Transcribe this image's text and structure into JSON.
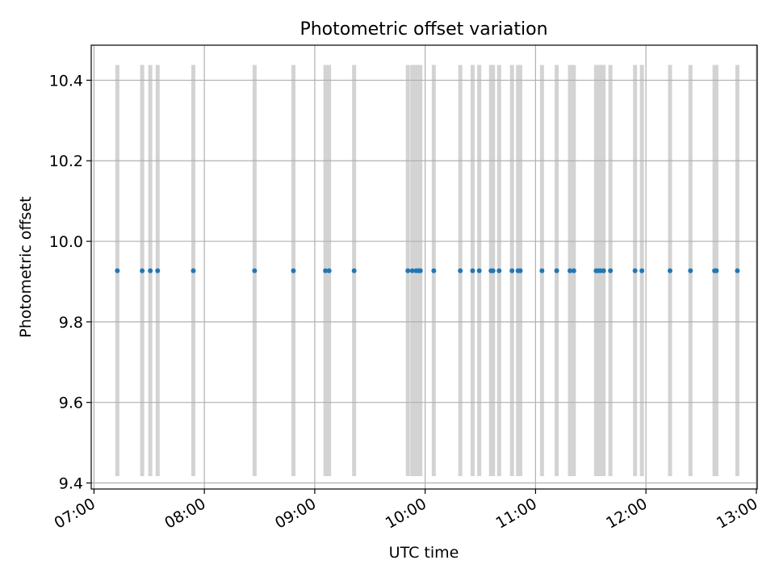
{
  "chart_data": {
    "type": "scatter",
    "title": "Photometric offset variation",
    "xlabel": "UTC time",
    "ylabel": "Photometric offset",
    "x_unit": "minutes since 07:00 UTC",
    "xlim": [
      -1.5,
      360.5
    ],
    "ylim": [
      9.385,
      10.487
    ],
    "xticks": [
      {
        "value": 0,
        "label": "07:00"
      },
      {
        "value": 60,
        "label": "08:00"
      },
      {
        "value": 120,
        "label": "09:00"
      },
      {
        "value": 180,
        "label": "10:00"
      },
      {
        "value": 240,
        "label": "11:00"
      },
      {
        "value": 300,
        "label": "12:00"
      },
      {
        "value": 360,
        "label": "13:00"
      }
    ],
    "yticks": [
      {
        "value": 9.4,
        "label": "9.4"
      },
      {
        "value": 9.6,
        "label": "9.6"
      },
      {
        "value": 9.8,
        "label": "9.8"
      },
      {
        "value": 10.0,
        "label": "10.0"
      },
      {
        "value": 10.2,
        "label": "10.2"
      },
      {
        "value": 10.4,
        "label": "10.4"
      }
    ],
    "grid": true,
    "point_color": "#1f77b4",
    "band_color": "#d3d3d3",
    "band_y_range": [
      9.417,
      10.438
    ],
    "band_times": [
      12.7,
      26.2,
      30.6,
      34.6,
      54.0,
      87.3,
      108.4,
      125.8,
      127.8,
      141.4,
      170.6,
      173.0,
      175.1,
      176.4,
      177.4,
      184.7,
      199.1,
      205.8,
      209.4,
      215.8,
      216.9,
      220.2,
      227.2,
      230.5,
      231.7,
      243.5,
      251.5,
      258.7,
      260.8,
      272.9,
      274.1,
      275.3,
      277.0,
      280.7,
      294.1,
      297.8,
      313.1,
      324.2,
      337.3,
      338.3,
      349.7
    ],
    "series": [
      {
        "name": "offset",
        "x": [
          12.7,
          26.2,
          30.6,
          34.6,
          54.0,
          87.3,
          108.4,
          125.8,
          127.8,
          141.4,
          170.6,
          173.0,
          175.1,
          176.4,
          177.4,
          184.7,
          199.1,
          205.8,
          209.4,
          215.8,
          216.9,
          220.2,
          227.2,
          230.5,
          231.7,
          243.5,
          251.5,
          258.7,
          260.8,
          272.9,
          274.1,
          275.3,
          277.0,
          280.7,
          294.1,
          297.8,
          313.1,
          324.2,
          337.3,
          338.3,
          349.7
        ],
        "y": [
          9.927,
          9.927,
          9.927,
          9.927,
          9.927,
          9.927,
          9.927,
          9.927,
          9.927,
          9.927,
          9.927,
          9.927,
          9.927,
          9.927,
          9.927,
          9.927,
          9.927,
          9.927,
          9.927,
          9.927,
          9.927,
          9.927,
          9.927,
          9.927,
          9.927,
          9.927,
          9.927,
          9.927,
          9.927,
          9.927,
          9.927,
          9.927,
          9.927,
          9.927,
          9.927,
          9.927,
          9.927,
          9.927,
          9.927,
          9.927,
          9.927
        ]
      }
    ]
  }
}
